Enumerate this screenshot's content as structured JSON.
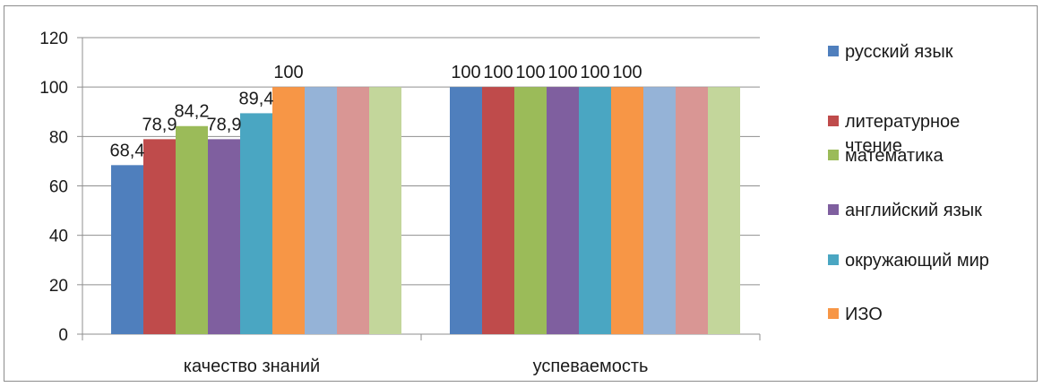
{
  "chart_data": {
    "type": "bar",
    "categories": [
      "качество знаний",
      "успеваемость"
    ],
    "ylim": [
      0,
      120
    ],
    "yticks": [
      0,
      20,
      40,
      60,
      80,
      100,
      120
    ],
    "grid": true,
    "legend_position": "right",
    "series": [
      {
        "name": "русский язык",
        "values": [
          68.4,
          100
        ],
        "labels": [
          "68,4",
          "100"
        ],
        "color": "#4f7fbd",
        "in_legend": true
      },
      {
        "name": "литературное чтение",
        "values": [
          78.9,
          100
        ],
        "labels": [
          "78,9",
          "100"
        ],
        "color": "#bf4b4b",
        "in_legend": true
      },
      {
        "name": "математика",
        "values": [
          84.2,
          100
        ],
        "labels": [
          "84,2",
          "100"
        ],
        "color": "#9bbb59",
        "in_legend": true
      },
      {
        "name": "английский язык",
        "values": [
          78.9,
          100
        ],
        "labels": [
          "78,9",
          "100"
        ],
        "color": "#7f5f9f",
        "in_legend": true
      },
      {
        "name": "окружающий мир",
        "values": [
          89.4,
          100
        ],
        "labels": [
          "89,4",
          "100"
        ],
        "color": "#4aa6c2",
        "in_legend": true
      },
      {
        "name": "ИЗО",
        "values": [
          100,
          100
        ],
        "labels": [
          "100",
          "100"
        ],
        "color": "#f79646",
        "in_legend": true
      },
      {
        "values": [
          100,
          100
        ],
        "labels": [
          "",
          ""
        ],
        "color": "#95b3d7",
        "in_legend": false
      },
      {
        "values": [
          100,
          100
        ],
        "labels": [
          "",
          ""
        ],
        "color": "#d99694",
        "in_legend": false
      },
      {
        "values": [
          100,
          100
        ],
        "labels": [
          "",
          ""
        ],
        "color": "#c3d69b",
        "in_legend": false
      }
    ],
    "legend_lines": [
      [
        "русский язык"
      ],
      [
        "литературное",
        "чтение"
      ],
      [
        "математика"
      ],
      [
        "английский язык"
      ],
      [
        "окружающий мир"
      ],
      [
        "ИЗО"
      ]
    ]
  }
}
